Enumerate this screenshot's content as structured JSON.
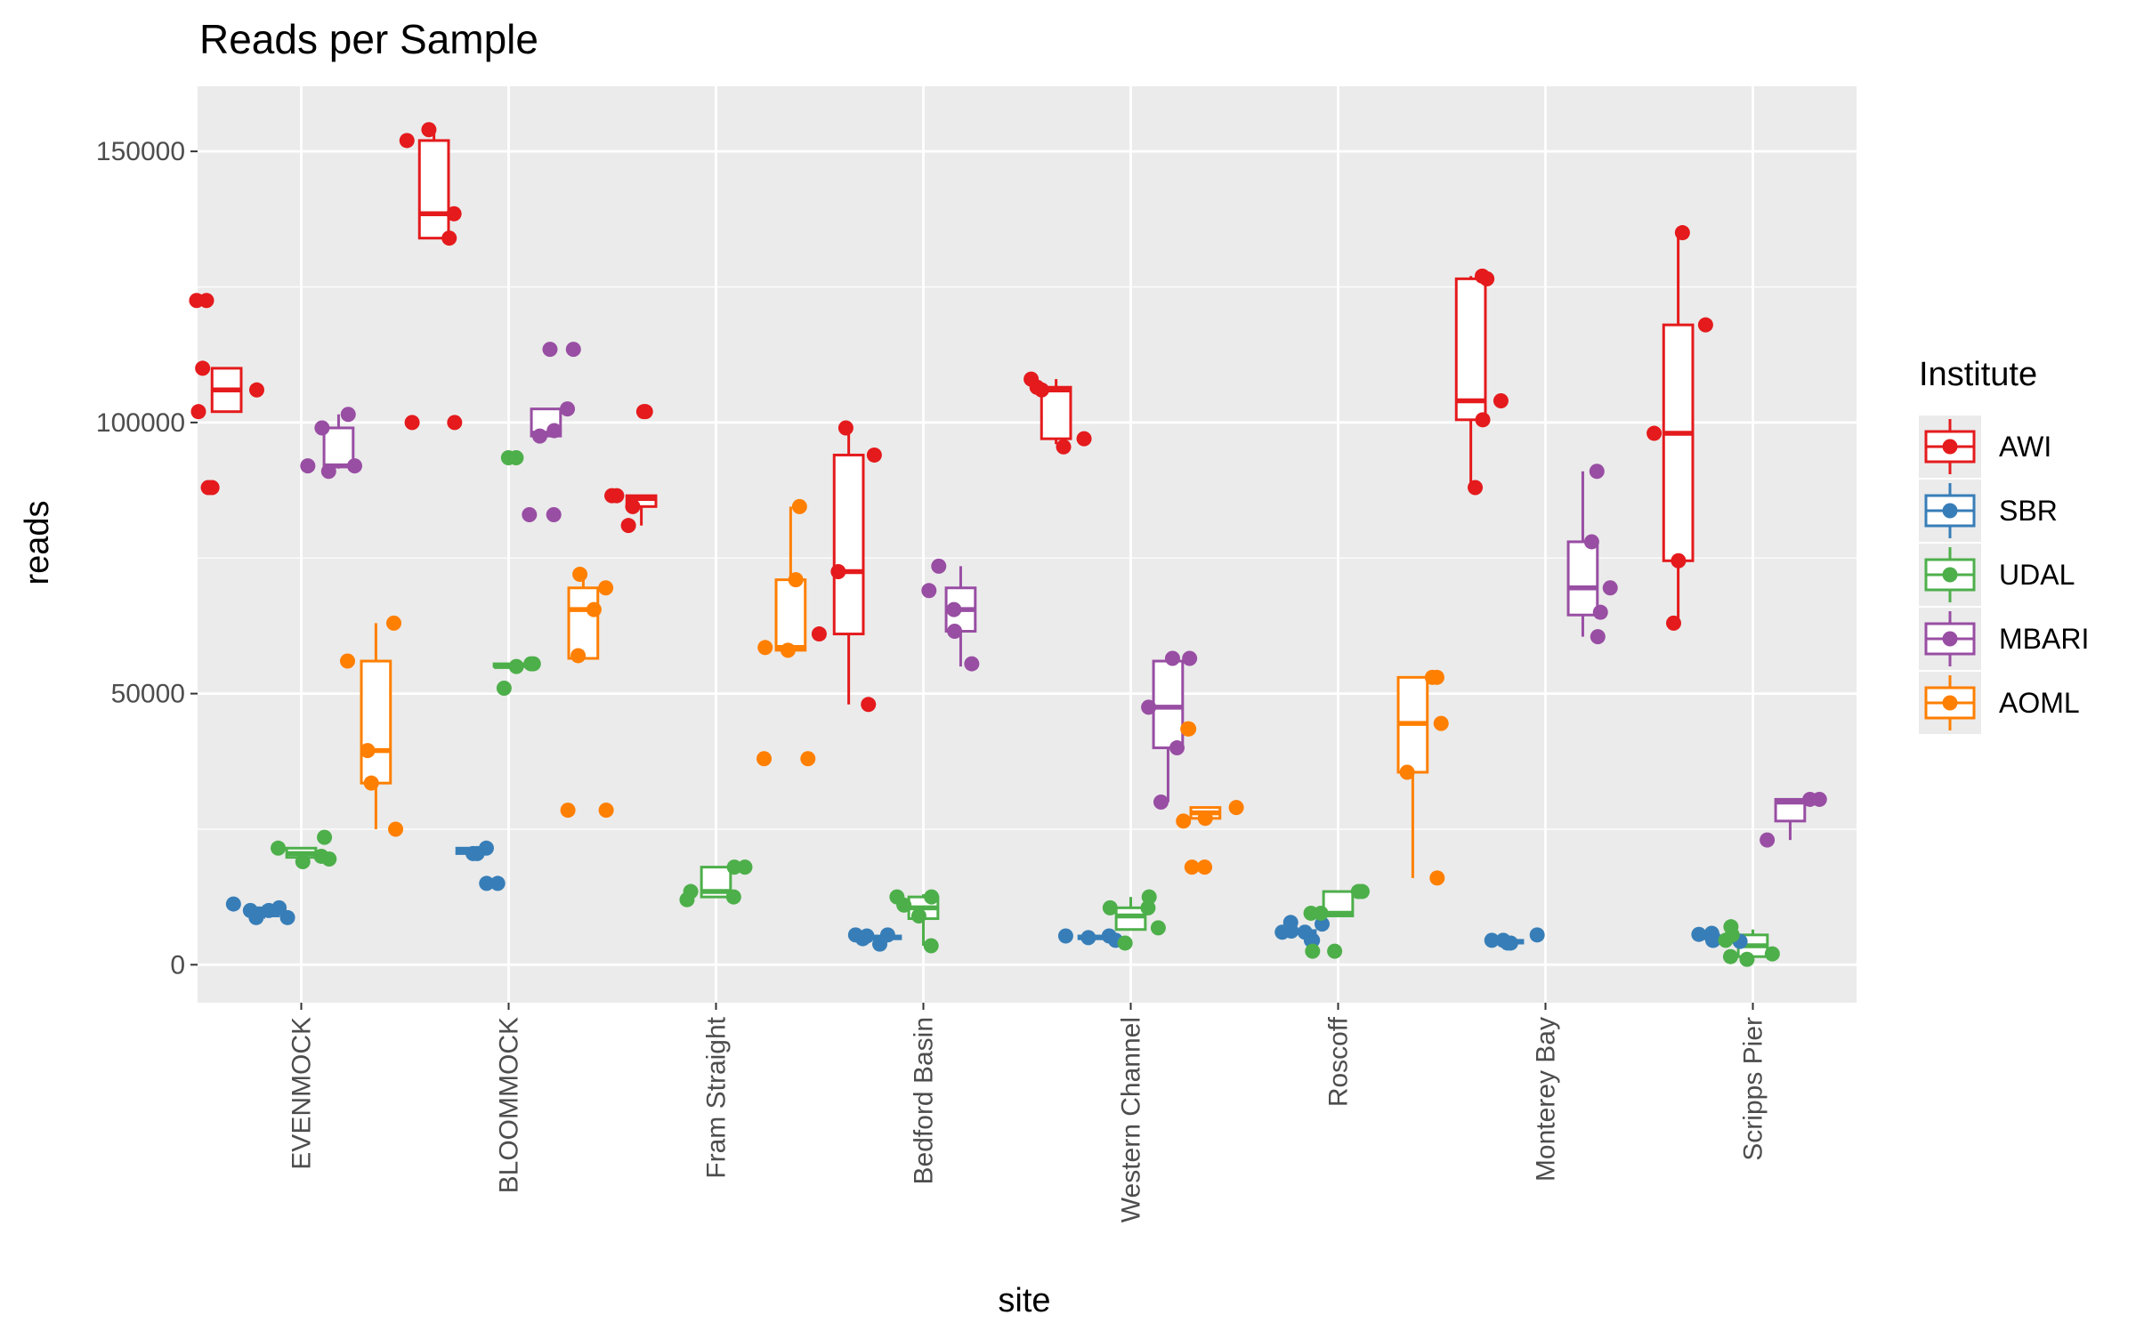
{
  "chart_data": {
    "type": "box",
    "title": "Reads per Sample",
    "xlabel": "site",
    "ylabel": "reads",
    "ylim": [
      -7000,
      162000
    ],
    "y_ticks": [
      0,
      50000,
      100000,
      150000
    ],
    "y_tick_labels": [
      "0",
      "50000",
      "100000",
      "150000"
    ],
    "grid": true,
    "legend": {
      "title": "Institute",
      "position": "right"
    },
    "categories": [
      "EVENMOCK",
      "BLOOMMOCK",
      "Fram Straight",
      "Bedford Basin",
      "Western Channel",
      "Roscoff",
      "Monterey Bay",
      "Scripps Pier"
    ],
    "series": [
      {
        "name": "AWI",
        "color": "#E41A1C",
        "boxes": [
          {
            "site": "EVENMOCK",
            "min": 102000,
            "q1": 102000,
            "median": 106000,
            "q3": 110000,
            "max": 110000
          },
          {
            "site": "BLOOMMOCK",
            "min": 134000,
            "q1": 134000,
            "median": 138500,
            "q3": 152000,
            "max": 154000
          },
          {
            "site": "Fram Straight",
            "min": 81000,
            "q1": 84500,
            "median": 86000,
            "q3": 86500,
            "max": 86500
          },
          {
            "site": "Bedford Basin",
            "min": 48000,
            "q1": 61000,
            "median": 72500,
            "q3": 94000,
            "max": 99000
          },
          {
            "site": "Western Channel",
            "min": 96000,
            "q1": 97000,
            "median": 106000,
            "q3": 106500,
            "max": 108000
          },
          {
            "site": "Monterey Bay",
            "min": 88000,
            "q1": 100500,
            "median": 104000,
            "q3": 126500,
            "max": 127000
          },
          {
            "site": "Scripps Pier",
            "min": 63000,
            "q1": 74500,
            "median": 98000,
            "q3": 118000,
            "max": 135000
          }
        ],
        "points": [
          {
            "site": "EVENMOCK",
            "values": [
              122500,
              122500,
              88000,
              88000,
              102000,
              106000,
              110000
            ]
          },
          {
            "site": "BLOOMMOCK",
            "values": [
              134000,
              152000,
              154000,
              100000,
              100000,
              138500
            ]
          },
          {
            "site": "Fram Straight",
            "values": [
              102000,
              84500,
              81000,
              102000,
              86500,
              86500
            ]
          },
          {
            "site": "Bedford Basin",
            "values": [
              99000,
              72500,
              94000,
              61000,
              48000
            ]
          },
          {
            "site": "Western Channel",
            "values": [
              106000,
              97000,
              95500,
              108000,
              106500
            ]
          },
          {
            "site": "Monterey Bay",
            "values": [
              126500,
              88000,
              100500,
              104000,
              127000
            ]
          },
          {
            "site": "Scripps Pier",
            "values": [
              74500,
              135000,
              98000,
              63000,
              118000
            ]
          }
        ]
      },
      {
        "name": "SBR",
        "color": "#377EB8",
        "boxes": [
          {
            "site": "EVENMOCK",
            "min": 8500,
            "q1": 9000,
            "median": 10000,
            "q3": 10500,
            "max": 11000
          },
          {
            "site": "BLOOMMOCK",
            "min": 20500,
            "q1": 20500,
            "median": 21000,
            "q3": 21500,
            "max": 21500
          },
          {
            "site": "Bedford Basin",
            "min": 4500,
            "q1": 4800,
            "median": 5000,
            "q3": 5300,
            "max": 5500
          },
          {
            "site": "Western Channel",
            "min": 4500,
            "q1": 4800,
            "median": 5000,
            "q3": 5300,
            "max": 5500
          },
          {
            "site": "Roscoff",
            "min": 5500,
            "q1": 5800,
            "median": 6000,
            "q3": 6300,
            "max": 6500
          },
          {
            "site": "Monterey Bay",
            "min": 3800,
            "q1": 4000,
            "median": 4200,
            "q3": 4500,
            "max": 4800
          },
          {
            "site": "Scripps Pier",
            "min": 4500,
            "q1": 4800,
            "median": 5000,
            "q3": 5300,
            "max": 5500
          }
        ],
        "points": [
          {
            "site": "EVENMOCK",
            "values": [
              11200,
              8700,
              10000,
              10000,
              8700,
              10500
            ]
          },
          {
            "site": "BLOOMMOCK",
            "values": [
              20500,
              15000,
              15000,
              21500,
              20500
            ]
          },
          {
            "site": "Bedford Basin",
            "values": [
              3800,
              5300,
              4800,
              5500,
              5500
            ]
          },
          {
            "site": "Western Channel",
            "values": [
              4500,
              5300,
              5300,
              5000
            ]
          },
          {
            "site": "Roscoff",
            "values": [
              7800,
              4500,
              6000,
              6200,
              4500,
              7500,
              6000
            ]
          },
          {
            "site": "Monterey Bay",
            "values": [
              4500,
              5500,
              4000,
              4500,
              4000
            ]
          },
          {
            "site": "Scripps Pier",
            "values": [
              5600,
              4500,
              5800,
              4500,
              5000,
              4300
            ]
          }
        ]
      },
      {
        "name": "UDAL",
        "color": "#4DAF4A",
        "boxes": [
          {
            "site": "EVENMOCK",
            "min": 19500,
            "q1": 19800,
            "median": 20500,
            "q3": 21500,
            "max": 21500
          },
          {
            "site": "BLOOMMOCK",
            "min": 55000,
            "q1": 55000,
            "median": 55000,
            "q3": 55500,
            "max": 55500
          },
          {
            "site": "Fram Straight",
            "min": 12500,
            "q1": 12500,
            "median": 13500,
            "q3": 18000,
            "max": 18000
          },
          {
            "site": "Bedford Basin",
            "min": 3500,
            "q1": 8500,
            "median": 10500,
            "q3": 12500,
            "max": 13000
          },
          {
            "site": "Western Channel",
            "min": 6500,
            "q1": 6500,
            "median": 9000,
            "q3": 10500,
            "max": 12500
          },
          {
            "site": "Roscoff",
            "min": 9000,
            "q1": 9000,
            "median": 9500,
            "q3": 13500,
            "max": 13500
          },
          {
            "site": "Scripps Pier",
            "min": 1500,
            "q1": 1500,
            "median": 3500,
            "q3": 5500,
            "max": 6500
          }
        ],
        "points": [
          {
            "site": "EVENMOCK",
            "values": [
              23500,
              19000,
              21500,
              20000,
              19500
            ]
          },
          {
            "site": "BLOOMMOCK",
            "values": [
              55500,
              93500,
              55000,
              51000,
              93500,
              55500
            ]
          },
          {
            "site": "Fram Straight",
            "values": [
              12000,
              13500,
              18000,
              18000,
              12500
            ]
          },
          {
            "site": "Bedford Basin",
            "values": [
              12500,
              12500,
              11000,
              9000,
              3500
            ]
          },
          {
            "site": "Western Channel",
            "values": [
              6800,
              4000,
              10500,
              12500,
              10500
            ]
          },
          {
            "site": "Roscoff",
            "values": [
              9500,
              13500,
              2500,
              2500,
              13500,
              9500
            ]
          },
          {
            "site": "Scripps Pier",
            "values": [
              7000,
              1500,
              4500,
              1000,
              5500,
              2000
            ]
          }
        ]
      },
      {
        "name": "MBARI",
        "color": "#984EA3",
        "boxes": [
          {
            "site": "EVENMOCK",
            "min": 91500,
            "q1": 92000,
            "median": 92000,
            "q3": 99000,
            "max": 101500
          },
          {
            "site": "BLOOMMOCK",
            "min": 97500,
            "q1": 97500,
            "median": 98000,
            "q3": 102500,
            "max": 102500
          },
          {
            "site": "Bedford Basin",
            "min": 55000,
            "q1": 61500,
            "median": 65500,
            "q3": 69500,
            "max": 73500
          },
          {
            "site": "Western Channel",
            "min": 30000,
            "q1": 40000,
            "median": 47500,
            "q3": 56000,
            "max": 56500
          },
          {
            "site": "Monterey Bay",
            "min": 60500,
            "q1": 64500,
            "median": 69500,
            "q3": 78000,
            "max": 91000
          },
          {
            "site": "Scripps Pier",
            "min": 23000,
            "q1": 26500,
            "median": 30000,
            "q3": 30500,
            "max": 30500
          }
        ],
        "points": [
          {
            "site": "EVENMOCK",
            "values": [
              91000,
              92000,
              92000,
              99000,
              101500
            ]
          },
          {
            "site": "BLOOMMOCK",
            "values": [
              113500,
              98500,
              102500,
              97500,
              113500,
              83000,
              83000
            ]
          },
          {
            "site": "Bedford Basin",
            "values": [
              61500,
              65500,
              73500,
              69000,
              55500
            ]
          },
          {
            "site": "Western Channel",
            "values": [
              56500,
              47500,
              30000,
              56500,
              40000
            ]
          },
          {
            "site": "Monterey Bay",
            "values": [
              78000,
              91000,
              69500,
              60500,
              65000
            ]
          },
          {
            "site": "Scripps Pier",
            "values": [
              30500,
              30500,
              23000
            ]
          }
        ]
      },
      {
        "name": "AOML",
        "color": "#FF7F00",
        "boxes": [
          {
            "site": "EVENMOCK",
            "min": 25000,
            "q1": 33500,
            "median": 39500,
            "q3": 56000,
            "max": 63000
          },
          {
            "site": "BLOOMMOCK",
            "min": 56500,
            "q1": 56500,
            "median": 65500,
            "q3": 69500,
            "max": 72000
          },
          {
            "site": "Fram Straight",
            "min": 58000,
            "q1": 58000,
            "median": 58500,
            "q3": 71000,
            "max": 84500
          },
          {
            "site": "Western Channel",
            "min": 27000,
            "q1": 27000,
            "median": 28000,
            "q3": 29000,
            "max": 29000
          },
          {
            "site": "Roscoff",
            "min": 16000,
            "q1": 35500,
            "median": 44500,
            "q3": 53000,
            "max": 53000
          }
        ],
        "points": [
          {
            "site": "EVENMOCK",
            "values": [
              63000,
              33500,
              39500,
              25000,
              56000
            ]
          },
          {
            "site": "BLOOMMOCK",
            "values": [
              69500,
              57000,
              65500,
              72000,
              28500,
              28500
            ]
          },
          {
            "site": "Fram Straight",
            "values": [
              84500,
              58500,
              38000,
              71000,
              58000,
              38000
            ]
          },
          {
            "site": "Western Channel",
            "values": [
              27000,
              18000,
              43500,
              26500,
              43500,
              29000,
              18000
            ]
          },
          {
            "site": "Roscoff",
            "values": [
              53000,
              44500,
              35500,
              53000,
              16000
            ]
          }
        ]
      }
    ]
  }
}
